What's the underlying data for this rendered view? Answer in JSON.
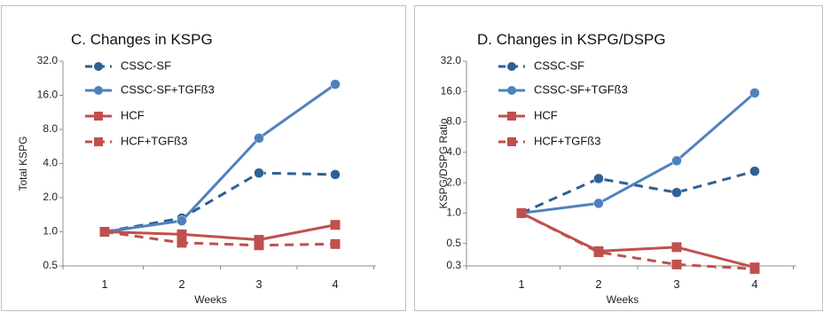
{
  "chart_data": [
    {
      "type": "line",
      "title": "C. Changes in KSPG",
      "xlabel": "Weeks",
      "ylabel": "Total  KSPG",
      "y_scale": "log2",
      "ylim": [
        0.5,
        32
      ],
      "y_ticks": [
        "0.5",
        "1.0",
        "2.0",
        "4.0",
        "8.0",
        "16.0",
        "32.0"
      ],
      "x": [
        1,
        2,
        3,
        4
      ],
      "x_ticks": [
        "1",
        "2",
        "3",
        "4"
      ],
      "grid": false,
      "legend_position": "top-left",
      "series": [
        {
          "name": "CSSC-SF",
          "values": [
            1.0,
            1.32,
            3.3,
            3.2
          ],
          "color": "#2f6096",
          "dash": true,
          "marker": "circle"
        },
        {
          "name": "CSSC-SF+TGFß3",
          "values": [
            1.0,
            1.25,
            6.7,
            20.0
          ],
          "color": "#4f81bd",
          "dash": false,
          "marker": "circle"
        },
        {
          "name": "HCF",
          "values": [
            1.0,
            0.95,
            0.85,
            1.15
          ],
          "color": "#c0504d",
          "dash": false,
          "marker": "square"
        },
        {
          "name": "HCF+TGFß3",
          "values": [
            1.0,
            0.8,
            0.76,
            0.78
          ],
          "color": "#c0504d",
          "dash": true,
          "marker": "square"
        }
      ]
    },
    {
      "type": "line",
      "title": "D.  Changes in KSPG/DSPG",
      "xlabel": "Weeks",
      "ylabel": "KSPG/DSPG Ratio",
      "y_scale": "log2",
      "ylim": [
        0.3,
        32
      ],
      "y_ticks": [
        "0.3",
        "0.5",
        "1.0",
        "2.0",
        "4.0",
        "8.0",
        "16.0",
        "32.0"
      ],
      "x": [
        1,
        2,
        3,
        4
      ],
      "x_ticks": [
        "1",
        "2",
        "3",
        "4"
      ],
      "grid": false,
      "legend_position": "top-left",
      "series": [
        {
          "name": "CSSC-SF",
          "values": [
            1.0,
            2.2,
            1.6,
            2.6
          ],
          "color": "#2f6096",
          "dash": true,
          "marker": "circle"
        },
        {
          "name": "CSSC-SF+TGFß3",
          "values": [
            1.0,
            1.25,
            3.3,
            15.5
          ],
          "color": "#4f81bd",
          "dash": false,
          "marker": "circle"
        },
        {
          "name": "HCF",
          "values": [
            1.0,
            0.42,
            0.46,
            0.29
          ],
          "color": "#c0504d",
          "dash": false,
          "marker": "square"
        },
        {
          "name": "HCF+TGFß3",
          "values": [
            1.0,
            0.41,
            0.31,
            0.28
          ],
          "color": "#c0504d",
          "dash": true,
          "marker": "square"
        }
      ]
    }
  ]
}
